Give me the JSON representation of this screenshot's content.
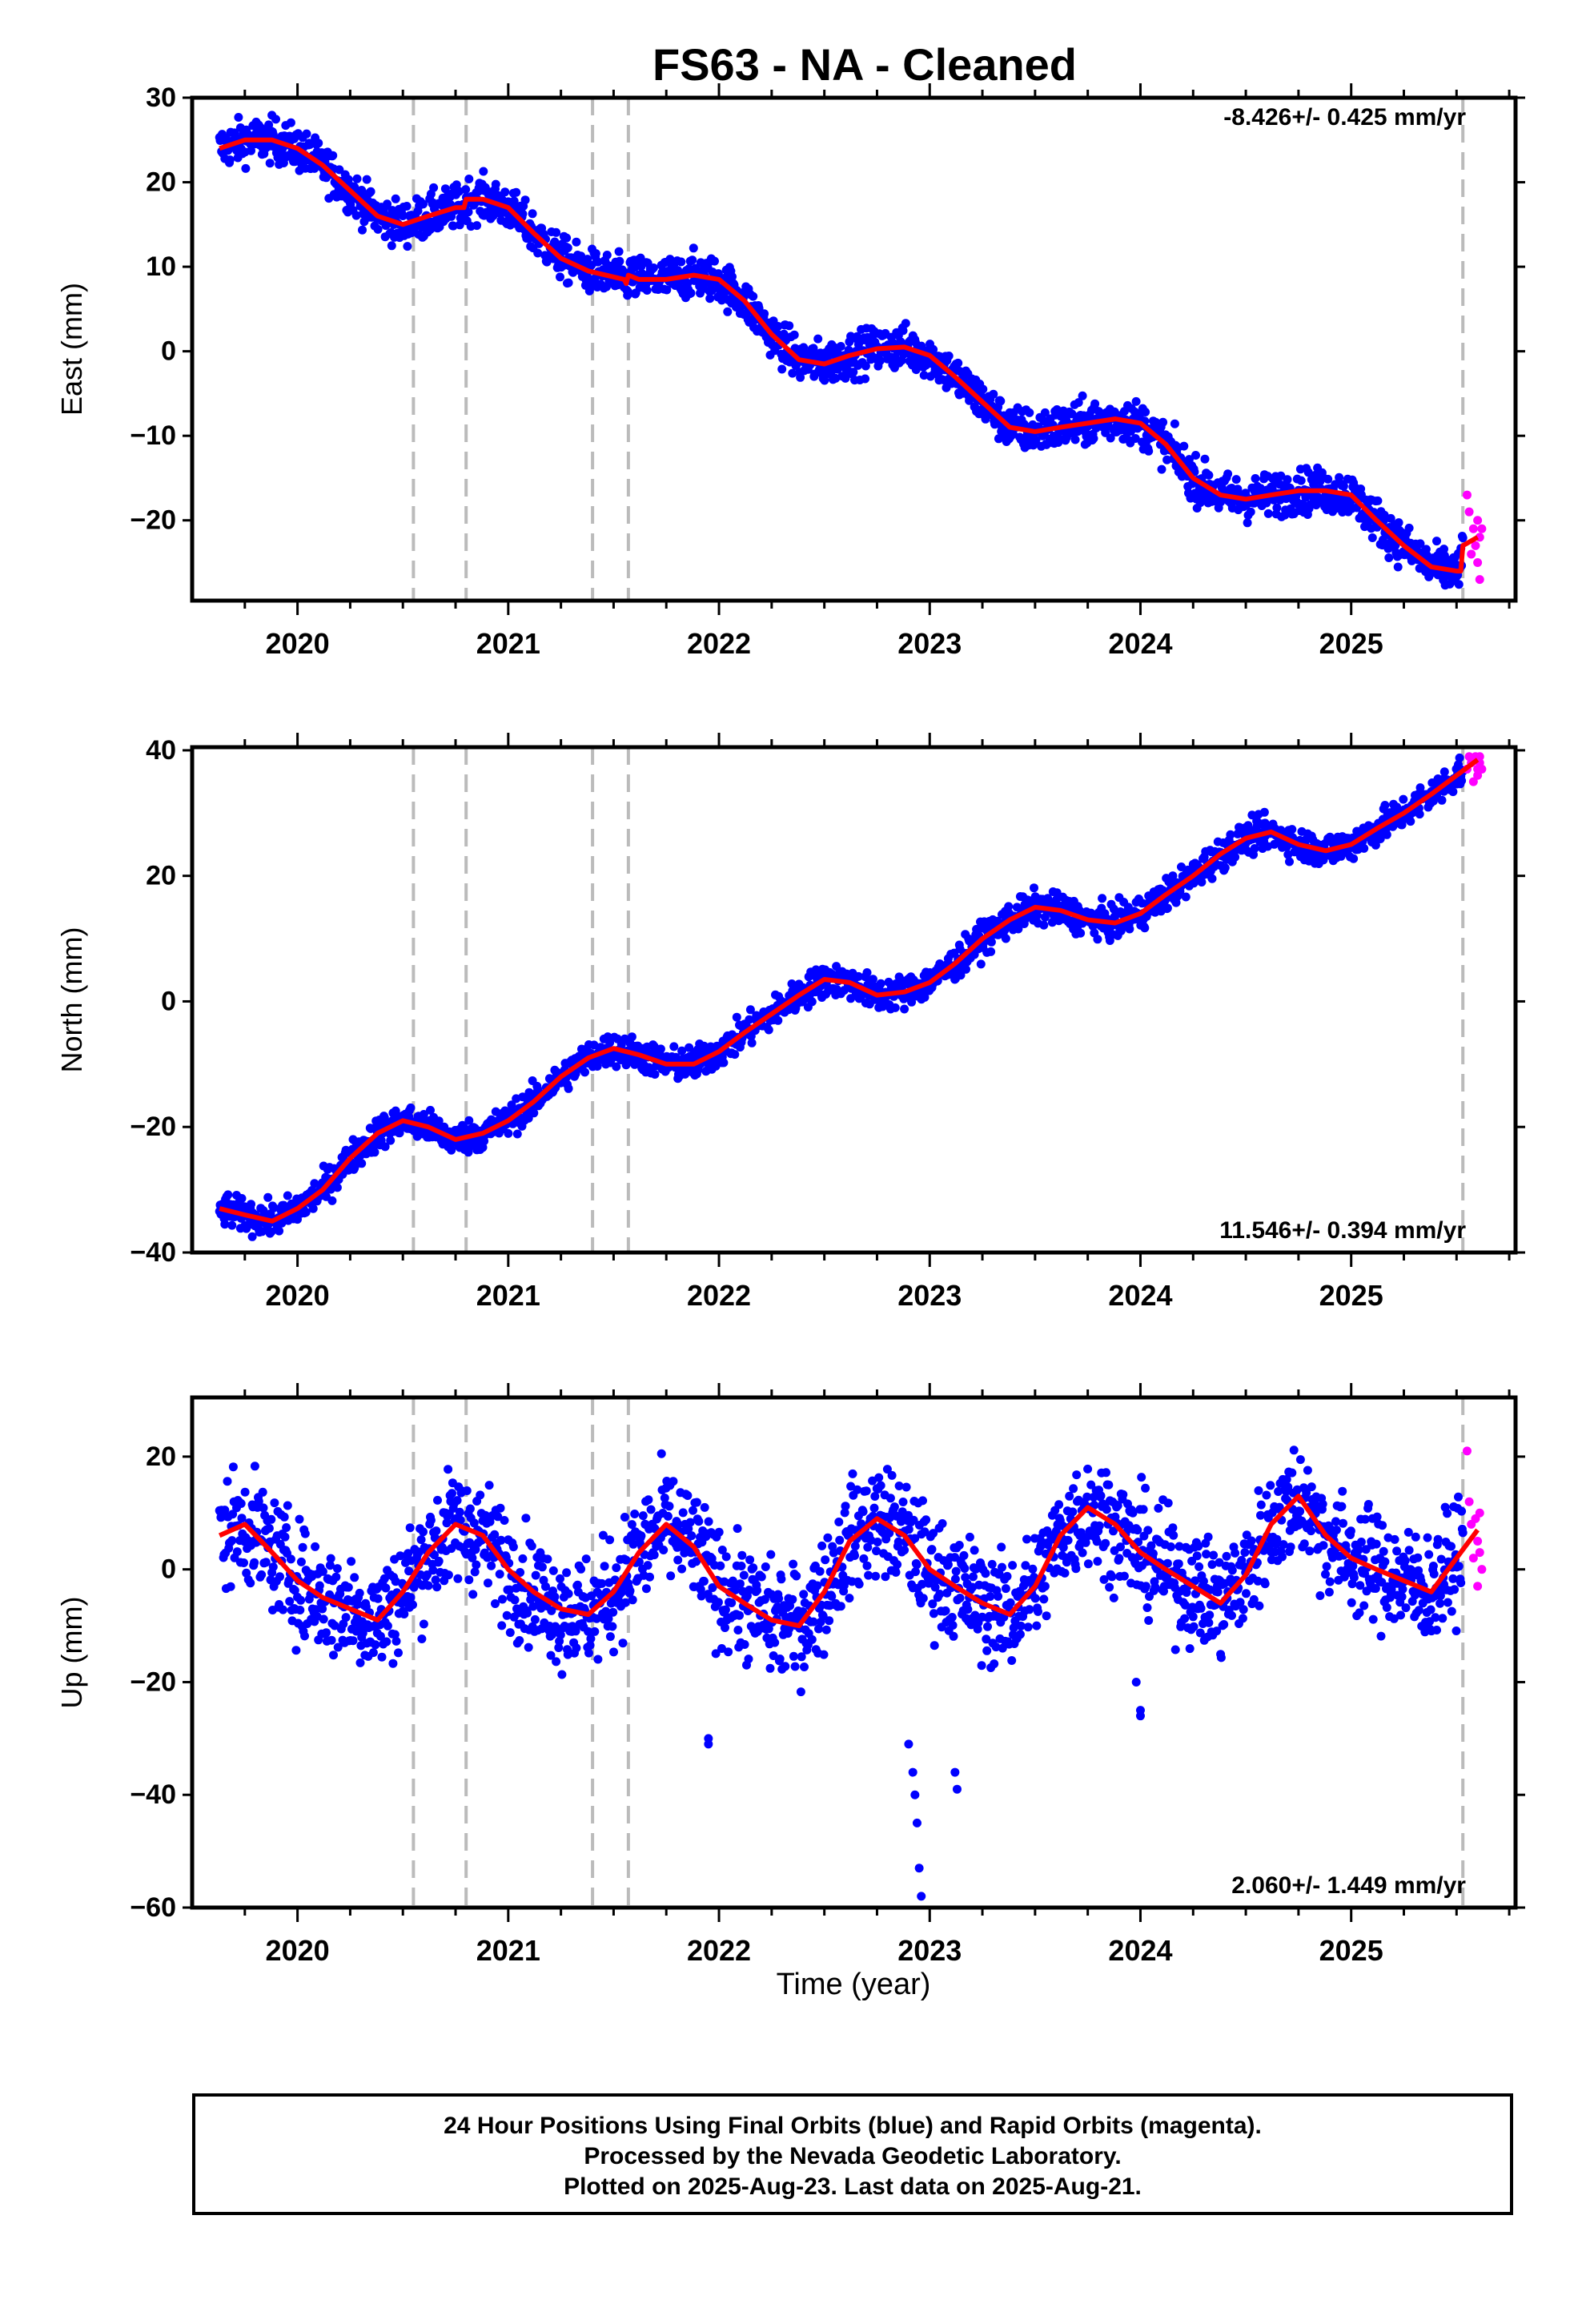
{
  "figure": {
    "title": "FS63  - NA - Cleaned",
    "xlabel": "Time (year)"
  },
  "footer": {
    "line1": "24 Hour Positions Using Final Orbits (blue) and Rapid Orbits (magenta).",
    "line2": "Processed by the Nevada Geodetic Laboratory.",
    "line3": "Plotted on 2025-Aug-23. Last data on 2025-Aug-21."
  },
  "colors": {
    "final_orbits": "#0000ff",
    "rapid_orbits": "#ff00ff",
    "model_fit": "#ff0000",
    "event_lines": "#bbbbbb"
  },
  "chart_data": [
    {
      "type": "scatter",
      "name": "east",
      "ylabel": "East (mm)",
      "rate_label": "-8.426+/- 0.425 mm/yr",
      "rate_position": "top-right",
      "xlim": [
        2019.5,
        2025.78
      ],
      "ylim": [
        -29.5,
        30
      ],
      "yticks": [
        -20,
        -10,
        0,
        10,
        20,
        30
      ],
      "xticks": [
        2020,
        2021,
        2022,
        2023,
        2024,
        2025
      ],
      "event_lines_x": [
        2020.55,
        2020.8,
        2021.4,
        2021.57,
        2025.53
      ],
      "model_fit": {
        "x": [
          2019.63,
          2019.75,
          2019.88,
          2020.0,
          2020.12,
          2020.25,
          2020.38,
          2020.5,
          2020.62,
          2020.75,
          2020.79,
          2020.8,
          2020.88,
          2021.0,
          2021.12,
          2021.25,
          2021.38,
          2021.55,
          2021.56,
          2021.57,
          2021.62,
          2021.75,
          2021.88,
          2022.0,
          2022.12,
          2022.25,
          2022.38,
          2022.5,
          2022.62,
          2022.75,
          2022.88,
          2023.0,
          2023.12,
          2023.25,
          2023.38,
          2023.5,
          2023.62,
          2023.75,
          2023.88,
          2024.0,
          2024.12,
          2024.25,
          2024.38,
          2024.5,
          2024.62,
          2024.75,
          2024.88,
          2025.0,
          2025.12,
          2025.25,
          2025.38,
          2025.5,
          2025.52,
          2025.53,
          2025.6
        ],
        "y": [
          24,
          25,
          25,
          24,
          22,
          19,
          16,
          15,
          16,
          17,
          17,
          18,
          18,
          17,
          14,
          11,
          9.5,
          8.5,
          8.0,
          9.0,
          8.5,
          8.5,
          9.0,
          8.5,
          6.0,
          2.0,
          -1.0,
          -1.5,
          -0.5,
          0.3,
          0.5,
          -0.5,
          -3.0,
          -6.0,
          -9.0,
          -9.5,
          -9.0,
          -8.5,
          -8.0,
          -8.5,
          -11.0,
          -15.0,
          -17.0,
          -17.5,
          -17.0,
          -16.5,
          -16.5,
          -17.0,
          -20.0,
          -23.0,
          -25.5,
          -26.0,
          -26.0,
          -23.0,
          -22.0
        ]
      },
      "scatter_band": 1.3,
      "rapid_orbits": {
        "x": [
          2025.55,
          2025.56,
          2025.57,
          2025.58,
          2025.59,
          2025.6,
          2025.6,
          2025.61,
          2025.61,
          2025.62
        ],
        "y": [
          -17,
          -19,
          -24,
          -21,
          -23,
          -20,
          -25,
          -22,
          -27,
          -21
        ]
      }
    },
    {
      "type": "scatter",
      "name": "north",
      "ylabel": "North (mm)",
      "rate_label": "11.546+/- 0.394 mm/yr",
      "rate_position": "bottom-right",
      "xlim": [
        2019.5,
        2025.78
      ],
      "ylim": [
        -40,
        40.5
      ],
      "yticks": [
        -40,
        -20,
        0,
        20,
        40
      ],
      "xticks": [
        2020,
        2021,
        2022,
        2023,
        2024,
        2025
      ],
      "event_lines_x": [
        2020.55,
        2020.8,
        2021.4,
        2021.57,
        2025.53
      ],
      "model_fit": {
        "x": [
          2019.63,
          2019.75,
          2019.88,
          2020.0,
          2020.12,
          2020.25,
          2020.38,
          2020.5,
          2020.62,
          2020.75,
          2020.88,
          2021.0,
          2021.12,
          2021.25,
          2021.38,
          2021.5,
          2021.62,
          2021.75,
          2021.88,
          2022.0,
          2022.12,
          2022.25,
          2022.38,
          2022.5,
          2022.62,
          2022.75,
          2022.88,
          2023.0,
          2023.12,
          2023.25,
          2023.38,
          2023.5,
          2023.62,
          2023.75,
          2023.88,
          2024.0,
          2024.12,
          2024.25,
          2024.38,
          2024.5,
          2024.62,
          2024.75,
          2024.88,
          2025.0,
          2025.12,
          2025.25,
          2025.38,
          2025.5,
          2025.6
        ],
        "y": [
          -33,
          -34,
          -35,
          -33,
          -30,
          -25,
          -21,
          -19,
          -20,
          -22,
          -21,
          -19,
          -16,
          -12,
          -9,
          -7.5,
          -8.5,
          -10,
          -10,
          -8,
          -5,
          -2,
          1,
          3.5,
          3.0,
          1.0,
          1.5,
          3.0,
          6.0,
          10.0,
          13.0,
          15.0,
          14.5,
          13.0,
          12.5,
          14.0,
          17.0,
          20.0,
          23.5,
          26.0,
          27.0,
          25.0,
          24.0,
          25.0,
          27.5,
          30.0,
          33.0,
          36.0,
          38.5
        ]
      },
      "scatter_band": 1.3,
      "rapid_orbits": {
        "x": [
          2025.55,
          2025.56,
          2025.57,
          2025.58,
          2025.59,
          2025.6,
          2025.6,
          2025.61,
          2025.61,
          2025.62
        ],
        "y": [
          37,
          39,
          38,
          35,
          39,
          37,
          36,
          39,
          38,
          37
        ]
      }
    },
    {
      "type": "scatter",
      "name": "up",
      "ylabel": "Up (mm)",
      "rate_label": "2.060+/- 1.449 mm/yr",
      "rate_position": "bottom-right",
      "xlim": [
        2019.5,
        2025.78
      ],
      "ylim": [
        -60,
        30.5
      ],
      "yticks": [
        -60,
        -40,
        -20,
        0,
        20
      ],
      "xticks": [
        2020,
        2021,
        2022,
        2023,
        2024,
        2025
      ],
      "event_lines_x": [
        2020.55,
        2020.8,
        2021.4,
        2021.57,
        2025.53
      ],
      "model_fit": {
        "x": [
          2019.63,
          2019.75,
          2019.88,
          2020.0,
          2020.12,
          2020.25,
          2020.38,
          2020.5,
          2020.62,
          2020.75,
          2020.88,
          2021.0,
          2021.12,
          2021.25,
          2021.38,
          2021.5,
          2021.62,
          2021.75,
          2021.88,
          2022.0,
          2022.12,
          2022.25,
          2022.38,
          2022.5,
          2022.62,
          2022.75,
          2022.88,
          2023.0,
          2023.12,
          2023.25,
          2023.38,
          2023.5,
          2023.62,
          2023.75,
          2023.88,
          2024.0,
          2024.12,
          2024.25,
          2024.38,
          2024.5,
          2024.62,
          2024.75,
          2024.88,
          2025.0,
          2025.12,
          2025.25,
          2025.38,
          2025.5,
          2025.6
        ],
        "y": [
          6,
          8,
          3,
          -2,
          -5,
          -7,
          -9,
          -4,
          3,
          8,
          6,
          0,
          -4,
          -7,
          -8,
          -4,
          3,
          8,
          4,
          -3,
          -6,
          -9,
          -10,
          -4,
          5,
          9,
          6,
          0,
          -3,
          -6,
          -8,
          -3,
          6,
          11,
          8,
          3,
          0,
          -3,
          -6,
          -1,
          8,
          13,
          6,
          2,
          0,
          -2,
          -4,
          2,
          7
        ]
      },
      "scatter_band": 5.0,
      "outliers": {
        "x": [
          2021.95,
          2021.95,
          2022.9,
          2022.92,
          2022.93,
          2022.94,
          2022.95,
          2022.96,
          2023.12,
          2023.13,
          2024.0,
          2024.0,
          2023.98
        ],
        "y": [
          -31,
          -30,
          -31,
          -36,
          -40,
          -45,
          -53,
          -58,
          -36,
          -39,
          -25,
          -26,
          -20
        ]
      },
      "rapid_orbits": {
        "x": [
          2025.55,
          2025.56,
          2025.57,
          2025.58,
          2025.59,
          2025.6,
          2025.6,
          2025.61,
          2025.61,
          2025.62
        ],
        "y": [
          21,
          12,
          8,
          2,
          9,
          -3,
          5,
          3,
          10,
          0
        ]
      }
    }
  ]
}
